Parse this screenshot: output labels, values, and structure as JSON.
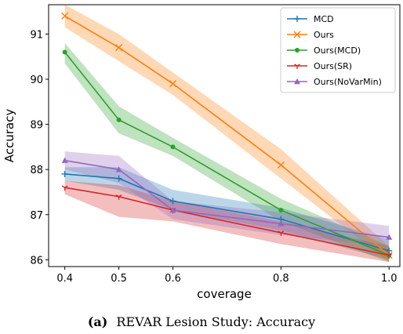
{
  "chart_data": {
    "type": "line",
    "xlabel": "coverage",
    "ylabel": "Accuracy",
    "xlim": [
      0.37,
      1.02
    ],
    "ylim": [
      85.85,
      91.65
    ],
    "xticks": [
      "0.4",
      "0.5",
      "0.6",
      "0.8",
      "1.0"
    ],
    "yticks": [
      86,
      87,
      88,
      89,
      90,
      91
    ],
    "legend_position": "top-right",
    "grid": false,
    "x": [
      0.4,
      0.5,
      0.6,
      0.8,
      1.0
    ],
    "series": [
      {
        "name": "MCD",
        "color": "#1f77b4",
        "marker": "plus",
        "values": [
          87.9,
          87.8,
          87.3,
          86.9,
          86.2
        ],
        "band_low": [
          87.75,
          87.55,
          87.1,
          86.65,
          86.0
        ],
        "band_high": [
          88.05,
          88.05,
          87.55,
          87.15,
          86.45
        ]
      },
      {
        "name": "Ours",
        "color": "#ff7f0e",
        "marker": "x",
        "values": [
          91.4,
          90.7,
          89.9,
          88.1,
          86.1
        ],
        "band_low": [
          91.15,
          90.4,
          89.65,
          87.8,
          85.95
        ],
        "band_high": [
          91.65,
          91.0,
          90.15,
          88.45,
          86.3
        ]
      },
      {
        "name": "Ours(MCD)",
        "color": "#2ca02c",
        "marker": "dot",
        "values": [
          90.6,
          89.1,
          88.5,
          87.1,
          86.1
        ],
        "band_low": [
          90.35,
          88.8,
          88.3,
          86.85,
          85.95
        ],
        "band_high": [
          90.8,
          89.4,
          88.7,
          87.35,
          86.3
        ]
      },
      {
        "name": "Ours(SR)",
        "color": "#d62728",
        "marker": "tri-down",
        "values": [
          87.6,
          87.4,
          87.1,
          86.6,
          86.1
        ],
        "band_low": [
          87.45,
          86.95,
          86.85,
          86.35,
          85.95
        ],
        "band_high": [
          87.75,
          87.65,
          87.3,
          86.85,
          86.3
        ]
      },
      {
        "name": "Ours(NoVarMin)",
        "color": "#9467bd",
        "marker": "triangle",
        "values": [
          88.2,
          88.0,
          87.1,
          86.8,
          86.5
        ],
        "band_low": [
          88.0,
          87.7,
          86.9,
          86.55,
          86.3
        ],
        "band_high": [
          88.4,
          88.3,
          87.3,
          87.05,
          86.75
        ]
      }
    ],
    "caption": {
      "tag": "(a)",
      "text": "REVAR Lesion Study: Accuracy"
    }
  }
}
